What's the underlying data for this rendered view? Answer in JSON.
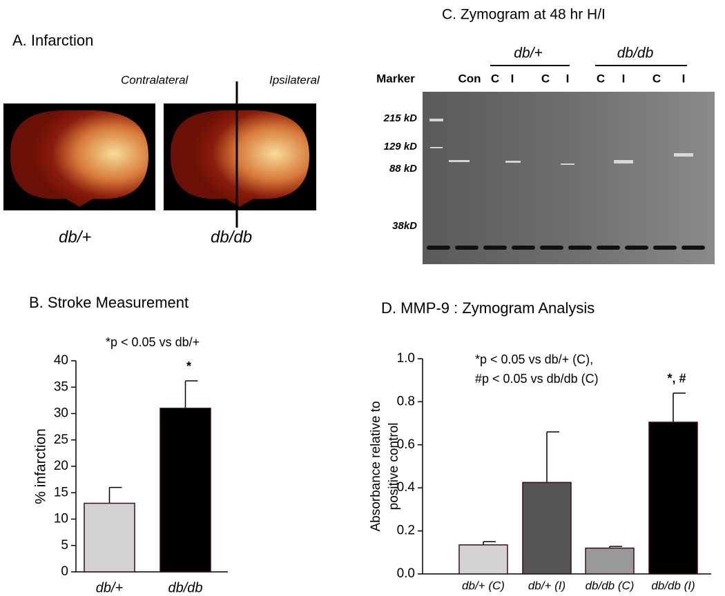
{
  "panel_a": {
    "title": "A.  Infarction",
    "side_labels": [
      "Contralateral",
      "Ipsilateral"
    ],
    "slice_labels": [
      "db/+",
      "db/db"
    ]
  },
  "panel_c": {
    "title": "C.  Zymogram at 48 hr H/I",
    "group_labels": [
      "db/+",
      "db/db"
    ],
    "lane_labels": [
      "Marker",
      "Con",
      "C",
      "I",
      "C",
      "I",
      "C",
      "I",
      "C",
      "I"
    ],
    "size_labels": [
      "215 kD",
      "129 kD",
      "88 kD",
      "38kD"
    ]
  },
  "chart_data": [
    {
      "type": "bar",
      "title": "B.  Stroke Measurement",
      "annotation": "*p < 0.05 vs db/+",
      "ylabel": "% infarction",
      "categories": [
        "db/+",
        "db/db"
      ],
      "values": [
        13,
        31
      ],
      "errors": [
        3,
        5.2
      ],
      "colors": [
        "#d3d3d3",
        "#000000"
      ],
      "value_annotations": [
        null,
        "*"
      ],
      "ylim": [
        0,
        40
      ],
      "yticks": [
        0,
        5,
        10,
        15,
        20,
        25,
        30,
        35,
        40
      ]
    },
    {
      "type": "bar",
      "title": "D.  MMP-9 : Zymogram Analysis",
      "annotation": [
        "*p < 0.05 vs db/+ (C),",
        "#p < 0.05 vs db/db (C)"
      ],
      "ylabel": [
        "Absorbance relative to",
        "positive control"
      ],
      "categories": [
        "db/+ (C)",
        "db/+ (I)",
        "db/db (C)",
        "db/db (I)"
      ],
      "values": [
        0.135,
        0.425,
        0.12,
        0.705
      ],
      "errors": [
        0.015,
        0.235,
        0.008,
        0.135
      ],
      "colors": [
        "#d3d3d3",
        "#555555",
        "#999999",
        "#000000"
      ],
      "value_annotations": [
        null,
        null,
        null,
        "*, #"
      ],
      "ylim": [
        0,
        1
      ],
      "yticks": [
        {
          "value": 0,
          "label": "0.0"
        },
        0.2,
        0.4,
        0.6,
        0.8,
        {
          "value": 1,
          "label": "1.0"
        }
      ]
    }
  ]
}
